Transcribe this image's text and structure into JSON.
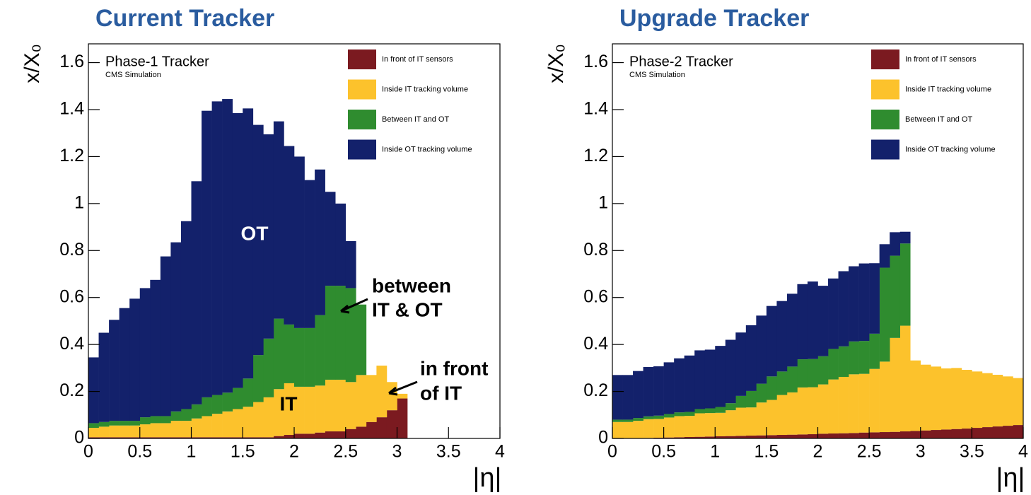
{
  "chart_data": [
    {
      "type": "histogram",
      "title": "Current Tracker",
      "label": "Phase-1 Tracker",
      "sublabel": "CMS Simulation",
      "xlabel": "|η|",
      "ylabel": "x/X₀",
      "annotations": [
        "OT",
        "between",
        "IT & OT",
        "IT",
        "in front",
        "of IT"
      ],
      "xlim": [
        0,
        4
      ],
      "ylim": [
        0,
        1.68
      ],
      "xticks": [
        0,
        0.5,
        1,
        1.5,
        2,
        2.5,
        3,
        3.5,
        4
      ],
      "yticks": [
        0,
        0.2,
        0.4,
        0.6,
        0.8,
        1,
        1.2,
        1.4,
        1.6
      ],
      "bins": [
        0,
        0.1,
        0.2,
        0.3,
        0.4,
        0.5,
        0.6,
        0.7,
        0.8,
        0.9,
        1,
        1.1,
        1.2,
        1.3,
        1.4,
        1.5,
        1.6,
        1.7,
        1.8,
        1.9,
        2,
        2.1,
        2.2,
        2.3,
        2.4,
        2.5,
        2.6,
        2.7,
        2.8,
        2.9,
        3,
        3.1,
        3.2,
        3.3,
        3.4,
        3.5,
        3.6,
        3.7,
        3.8,
        3.9,
        4
      ],
      "series": [
        {
          "name": "In front of IT sensors",
          "color": "#7b1a20",
          "values": [
            0.005,
            0.005,
            0.005,
            0.005,
            0.005,
            0.005,
            0.005,
            0.005,
            0.005,
            0.005,
            0.005,
            0.005,
            0.005,
            0.005,
            0.005,
            0.005,
            0.005,
            0.005,
            0.01,
            0.015,
            0.02,
            0.02,
            0.025,
            0.03,
            0.03,
            0.04,
            0.05,
            0.07,
            0.09,
            0.12,
            0.17,
            0,
            0,
            0,
            0,
            0,
            0,
            0,
            0,
            0
          ]
        },
        {
          "name": "Inside IT tracking volume",
          "color": "#fcc22c",
          "values": [
            0.04,
            0.045,
            0.05,
            0.05,
            0.05,
            0.055,
            0.06,
            0.06,
            0.07,
            0.07,
            0.08,
            0.09,
            0.1,
            0.11,
            0.12,
            0.13,
            0.15,
            0.17,
            0.2,
            0.22,
            0.2,
            0.2,
            0.2,
            0.22,
            0.22,
            0.2,
            0.22,
            0.2,
            0.22,
            0.12,
            0.02,
            0,
            0,
            0,
            0,
            0,
            0,
            0,
            0,
            0
          ]
        },
        {
          "name": "Between IT and OT",
          "color": "#2f8c2f",
          "values": [
            0.02,
            0.02,
            0.02,
            0.02,
            0.02,
            0.03,
            0.03,
            0.03,
            0.04,
            0.05,
            0.06,
            0.08,
            0.08,
            0.08,
            0.09,
            0.12,
            0.2,
            0.25,
            0.3,
            0.25,
            0.25,
            0.25,
            0.3,
            0.4,
            0.4,
            0.4,
            0.3,
            0,
            0,
            0,
            0,
            0,
            0,
            0,
            0,
            0,
            0,
            0,
            0,
            0
          ]
        },
        {
          "name": "Inside OT tracking volume",
          "color": "#13216b",
          "values": [
            0.28,
            0.38,
            0.43,
            0.48,
            0.52,
            0.55,
            0.58,
            0.68,
            0.72,
            0.8,
            0.95,
            1.22,
            1.25,
            1.25,
            1.17,
            1.15,
            0.98,
            0.87,
            0.84,
            0.76,
            0.73,
            0.63,
            0.62,
            0.4,
            0.35,
            0.2,
            0,
            0,
            0,
            0,
            0,
            0,
            0,
            0,
            0,
            0,
            0,
            0,
            0,
            0
          ]
        }
      ]
    },
    {
      "type": "histogram",
      "title": "Upgrade Tracker",
      "label": "Phase-2 Tracker",
      "sublabel": "CMS Simulation",
      "xlabel": "|η|",
      "ylabel": "x/X₀",
      "xlim": [
        0,
        4
      ],
      "ylim": [
        0,
        1.68
      ],
      "xticks": [
        0,
        0.5,
        1,
        1.5,
        2,
        2.5,
        3,
        3.5,
        4
      ],
      "yticks": [
        0,
        0.2,
        0.4,
        0.6,
        0.8,
        1,
        1.2,
        1.4,
        1.6
      ],
      "bins": [
        0,
        0.1,
        0.2,
        0.3,
        0.4,
        0.5,
        0.6,
        0.7,
        0.8,
        0.9,
        1,
        1.1,
        1.2,
        1.3,
        1.4,
        1.5,
        1.6,
        1.7,
        1.8,
        1.9,
        2,
        2.1,
        2.2,
        2.3,
        2.4,
        2.5,
        2.6,
        2.7,
        2.8,
        2.9,
        3,
        3.1,
        3.2,
        3.3,
        3.4,
        3.5,
        3.6,
        3.7,
        3.8,
        3.9,
        4
      ],
      "series": [
        {
          "name": "In front of IT sensors",
          "color": "#7b1a20",
          "values": [
            0,
            0,
            0,
            0.002,
            0.003,
            0.004,
            0.005,
            0.006,
            0.007,
            0.008,
            0.009,
            0.01,
            0.011,
            0.012,
            0.013,
            0.014,
            0.015,
            0.016,
            0.017,
            0.018,
            0.02,
            0.021,
            0.022,
            0.023,
            0.025,
            0.026,
            0.027,
            0.028,
            0.03,
            0.032,
            0.034,
            0.036,
            0.038,
            0.04,
            0.042,
            0.045,
            0.048,
            0.051,
            0.054,
            0.057
          ]
        },
        {
          "name": "Inside IT tracking volume",
          "color": "#fcc22c",
          "values": [
            0.07,
            0.07,
            0.075,
            0.08,
            0.08,
            0.085,
            0.09,
            0.09,
            0.1,
            0.1,
            0.1,
            0.11,
            0.12,
            0.12,
            0.14,
            0.15,
            0.17,
            0.18,
            0.2,
            0.2,
            0.21,
            0.23,
            0.24,
            0.25,
            0.25,
            0.27,
            0.3,
            0.4,
            0.45,
            0.3,
            0.28,
            0.27,
            0.26,
            0.26,
            0.25,
            0.24,
            0.23,
            0.22,
            0.21,
            0.2
          ]
        },
        {
          "name": "Between IT and OT",
          "color": "#2f8c2f",
          "values": [
            0.01,
            0.01,
            0.012,
            0.012,
            0.014,
            0.015,
            0.016,
            0.017,
            0.018,
            0.02,
            0.025,
            0.03,
            0.05,
            0.07,
            0.08,
            0.1,
            0.1,
            0.11,
            0.12,
            0.12,
            0.12,
            0.13,
            0.13,
            0.14,
            0.14,
            0.15,
            0.4,
            0.35,
            0.35,
            0,
            0,
            0,
            0,
            0,
            0,
            0,
            0,
            0,
            0,
            0
          ]
        },
        {
          "name": "Inside OT tracking volume",
          "color": "#13216b",
          "values": [
            0.19,
            0.19,
            0.2,
            0.21,
            0.21,
            0.22,
            0.23,
            0.24,
            0.25,
            0.25,
            0.26,
            0.27,
            0.27,
            0.28,
            0.29,
            0.3,
            0.3,
            0.31,
            0.32,
            0.33,
            0.3,
            0.3,
            0.32,
            0.32,
            0.33,
            0.3,
            0.1,
            0.1,
            0.05,
            0,
            0,
            0,
            0,
            0,
            0,
            0,
            0,
            0,
            0,
            0
          ]
        }
      ]
    }
  ]
}
